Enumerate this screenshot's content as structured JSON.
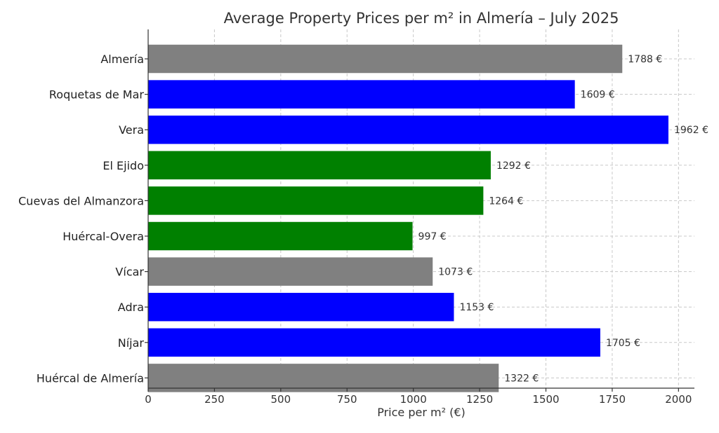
{
  "chart_data": {
    "type": "bar",
    "orientation": "horizontal",
    "title": "Average Property Prices per m² in Almería – July 2025",
    "xlabel": "Price per m² (€)",
    "ylabel": "",
    "xlim": [
      0,
      2060
    ],
    "xticks": [
      0,
      250,
      500,
      750,
      1000,
      1250,
      1500,
      1750,
      2000
    ],
    "grid": true,
    "categories": [
      "Almería",
      "Roquetas de Mar",
      "Vera",
      "El Ejido",
      "Cuevas del Almanzora",
      "Huércal-Overa",
      "Vícar",
      "Adra",
      "Níjar",
      "Huércal de Almería"
    ],
    "values": [
      1788,
      1609,
      1962,
      1292,
      1264,
      997,
      1073,
      1153,
      1705,
      1322
    ],
    "value_labels": [
      "1788 €",
      "1609 €",
      "1962 €",
      "1292 €",
      "1264 €",
      "997 €",
      "1073 €",
      "1153 €",
      "1705 €",
      "1322 €"
    ],
    "bar_colors": [
      "#808080",
      "#0000ff",
      "#0000ff",
      "#008000",
      "#008000",
      "#008000",
      "#808080",
      "#0000ff",
      "#0000ff",
      "#808080"
    ]
  }
}
